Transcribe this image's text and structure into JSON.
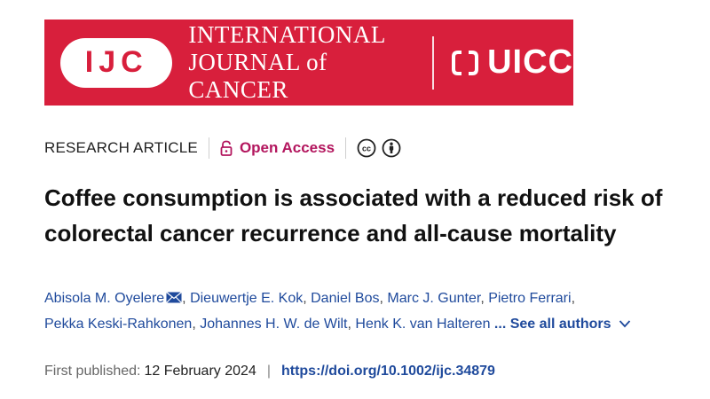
{
  "banner": {
    "logo_text": "IJC",
    "journal_line1": "INTERNATIONAL",
    "journal_line2": "JOURNAL of CANCER",
    "partner_text": "UICC",
    "color": "#d81f3c"
  },
  "meta": {
    "article_type": "RESEARCH ARTICLE",
    "open_access_label": "Open Access",
    "open_access_color": "#b3165e",
    "license_icons": [
      "cc-icon",
      "attribution-icon"
    ]
  },
  "title": {
    "line1": "Coffee consumption is associated with a reduced risk of",
    "line2": "colorectal cancer recurrence and all-cause mortality"
  },
  "authors": {
    "list": [
      "Abisola M. Oyelere",
      "Dieuwertje E. Kok",
      "Daniel Bos",
      "Marc J. Gunter",
      "Pietro Ferrari",
      "Pekka Keski-Rahkonen",
      "Johannes H. W. de Wilt",
      "Henk K. van Halteren"
    ],
    "see_all": "... See all authors"
  },
  "publication": {
    "first_published_label": "First published:",
    "date": "12 February 2024",
    "separator": "|",
    "doi": "https://doi.org/10.1002/ijc.34879"
  }
}
